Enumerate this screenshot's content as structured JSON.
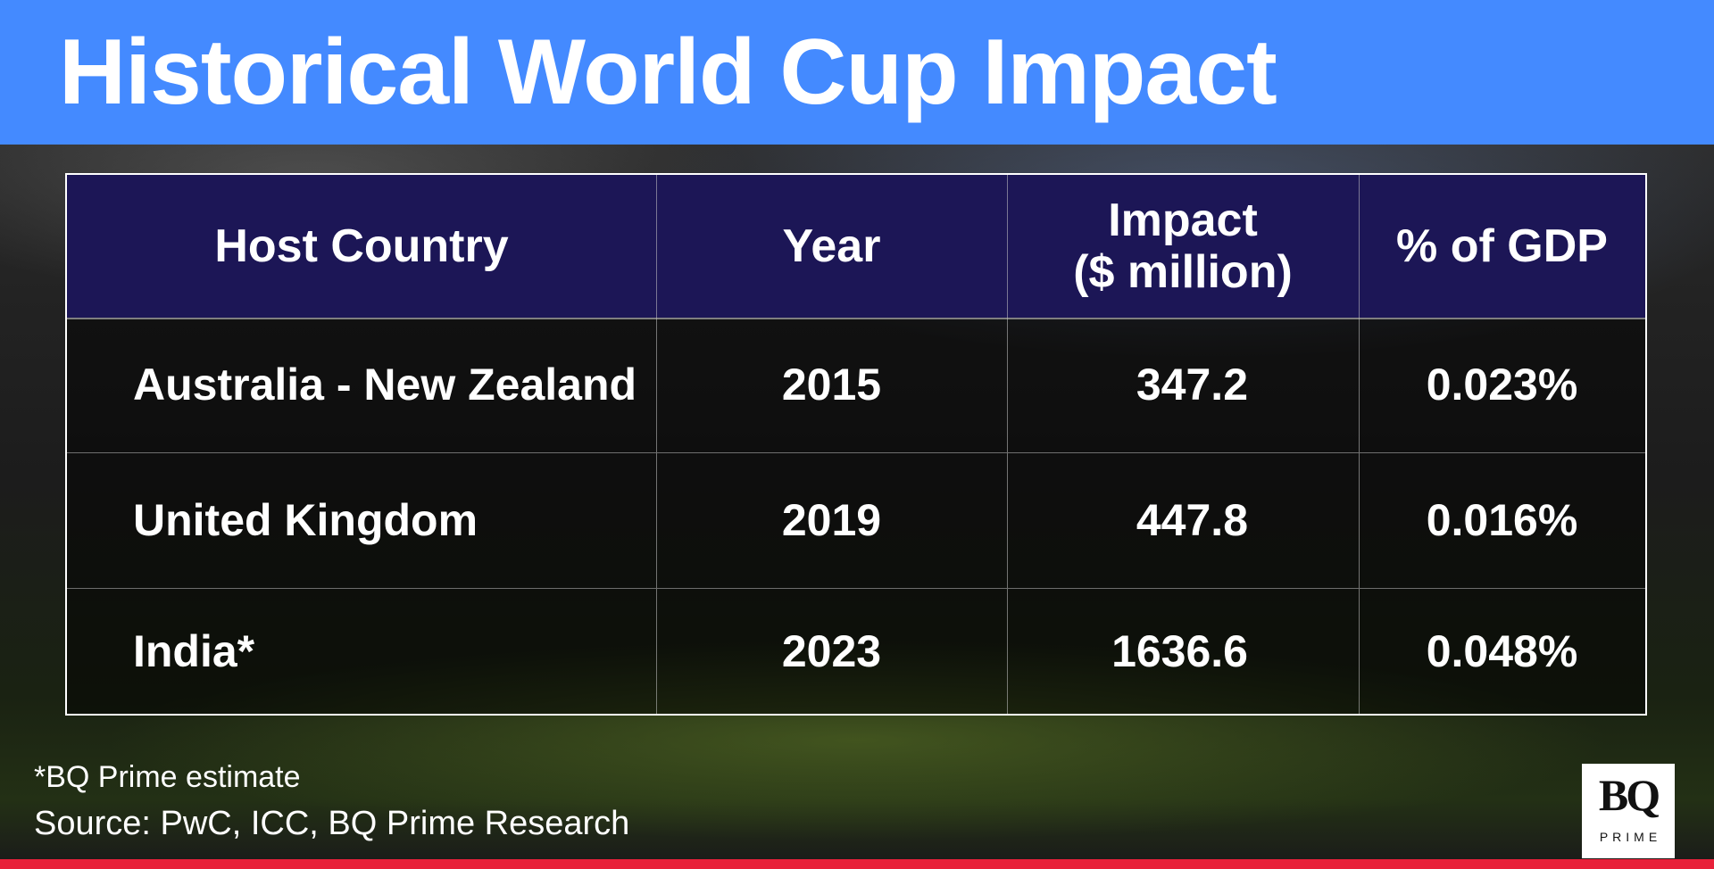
{
  "title": "Historical World Cup Impact",
  "chart_data": {
    "type": "table",
    "columns": [
      "Host Country",
      "Year",
      "Impact\n($ million)",
      "% of GDP"
    ],
    "rows": [
      [
        "Australia - New Zealand",
        "2015",
        "347.2",
        "0.023%"
      ],
      [
        "United Kingdom",
        "2019",
        "447.8",
        "0.016%"
      ],
      [
        "India*",
        "2023",
        "1636.6",
        "0.048%"
      ]
    ]
  },
  "footnote": "*BQ Prime estimate",
  "source": "Source: PwC, ICC, BQ Prime Research",
  "logo": {
    "main": "BQ",
    "sub": "PRIME"
  },
  "colors": {
    "header_band": "#448aff",
    "table_header": "#1c1656",
    "bottom_bar": "#e8213a"
  }
}
